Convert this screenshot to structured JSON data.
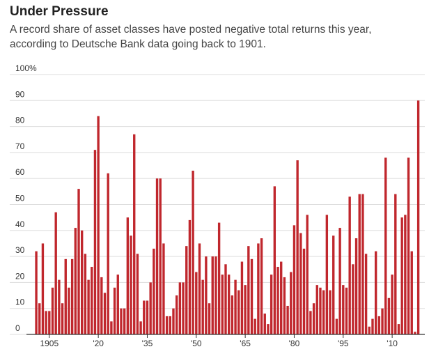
{
  "chart_data": {
    "type": "bar",
    "title": "Under Pressure",
    "subtitle": "A record share of asset classes have posted negative total returns this year, according to Deutsche Bank data going back to 1901.",
    "x": [
      1901,
      1902,
      1903,
      1904,
      1905,
      1906,
      1907,
      1908,
      1909,
      1910,
      1911,
      1912,
      1913,
      1914,
      1915,
      1916,
      1917,
      1918,
      1919,
      1920,
      1921,
      1922,
      1923,
      1924,
      1925,
      1926,
      1927,
      1928,
      1929,
      1930,
      1931,
      1932,
      1933,
      1934,
      1935,
      1936,
      1937,
      1938,
      1939,
      1940,
      1941,
      1942,
      1943,
      1944,
      1945,
      1946,
      1947,
      1948,
      1949,
      1950,
      1951,
      1952,
      1953,
      1954,
      1955,
      1956,
      1957,
      1958,
      1959,
      1960,
      1961,
      1962,
      1963,
      1964,
      1965,
      1966,
      1967,
      1968,
      1969,
      1970,
      1971,
      1972,
      1973,
      1974,
      1975,
      1976,
      1977,
      1978,
      1979,
      1980,
      1981,
      1982,
      1983,
      1984,
      1985,
      1986,
      1987,
      1988,
      1989,
      1990,
      1991,
      1992,
      1993,
      1994,
      1995,
      1996,
      1997,
      1998,
      1999,
      2000,
      2001,
      2002,
      2003,
      2004,
      2005,
      2006,
      2007,
      2008,
      2009,
      2010,
      2011,
      2012,
      2013,
      2014,
      2015,
      2016,
      2017,
      2018
    ],
    "values": [
      32,
      12,
      35,
      9,
      9,
      18,
      47,
      21,
      12,
      29,
      18,
      29,
      41,
      56,
      40,
      31,
      21,
      26,
      71,
      84,
      22,
      16,
      62,
      5,
      18,
      23,
      10,
      10,
      45,
      38,
      77,
      31,
      5,
      13,
      13,
      20,
      33,
      60,
      60,
      35,
      7,
      7,
      10,
      15,
      20,
      20,
      34,
      44,
      63,
      24,
      35,
      21,
      30,
      12,
      30,
      30,
      43,
      23,
      27,
      23,
      15,
      21,
      17,
      28,
      19,
      34,
      29,
      6,
      35,
      37,
      8,
      4,
      23,
      57,
      26,
      28,
      22,
      11,
      24,
      42,
      67,
      39,
      33,
      46,
      9,
      12,
      19,
      18,
      17,
      46,
      17,
      38,
      6,
      41,
      19,
      18,
      53,
      27,
      37,
      54,
      54,
      31,
      3,
      6,
      32,
      7,
      10,
      68,
      14,
      23,
      54,
      4,
      45,
      46,
      68,
      32,
      1,
      90
    ],
    "color": "#c0272d",
    "xlim": [
      1898,
      2020
    ],
    "xticks": [
      {
        "value": 1905,
        "label": "1905"
      },
      {
        "value": 1920,
        "label": "'20"
      },
      {
        "value": 1935,
        "label": "'35"
      },
      {
        "value": 1950,
        "label": "'50"
      },
      {
        "value": 1965,
        "label": "'65"
      },
      {
        "value": 1980,
        "label": "'80"
      },
      {
        "value": 1995,
        "label": "'95"
      },
      {
        "value": 2010,
        "label": "'10"
      }
    ],
    "ylim": [
      0,
      100
    ],
    "yticks": [
      0,
      10,
      20,
      30,
      40,
      50,
      60,
      70,
      80,
      90,
      {
        "value": 100,
        "label": "100%"
      }
    ],
    "grid": true
  }
}
